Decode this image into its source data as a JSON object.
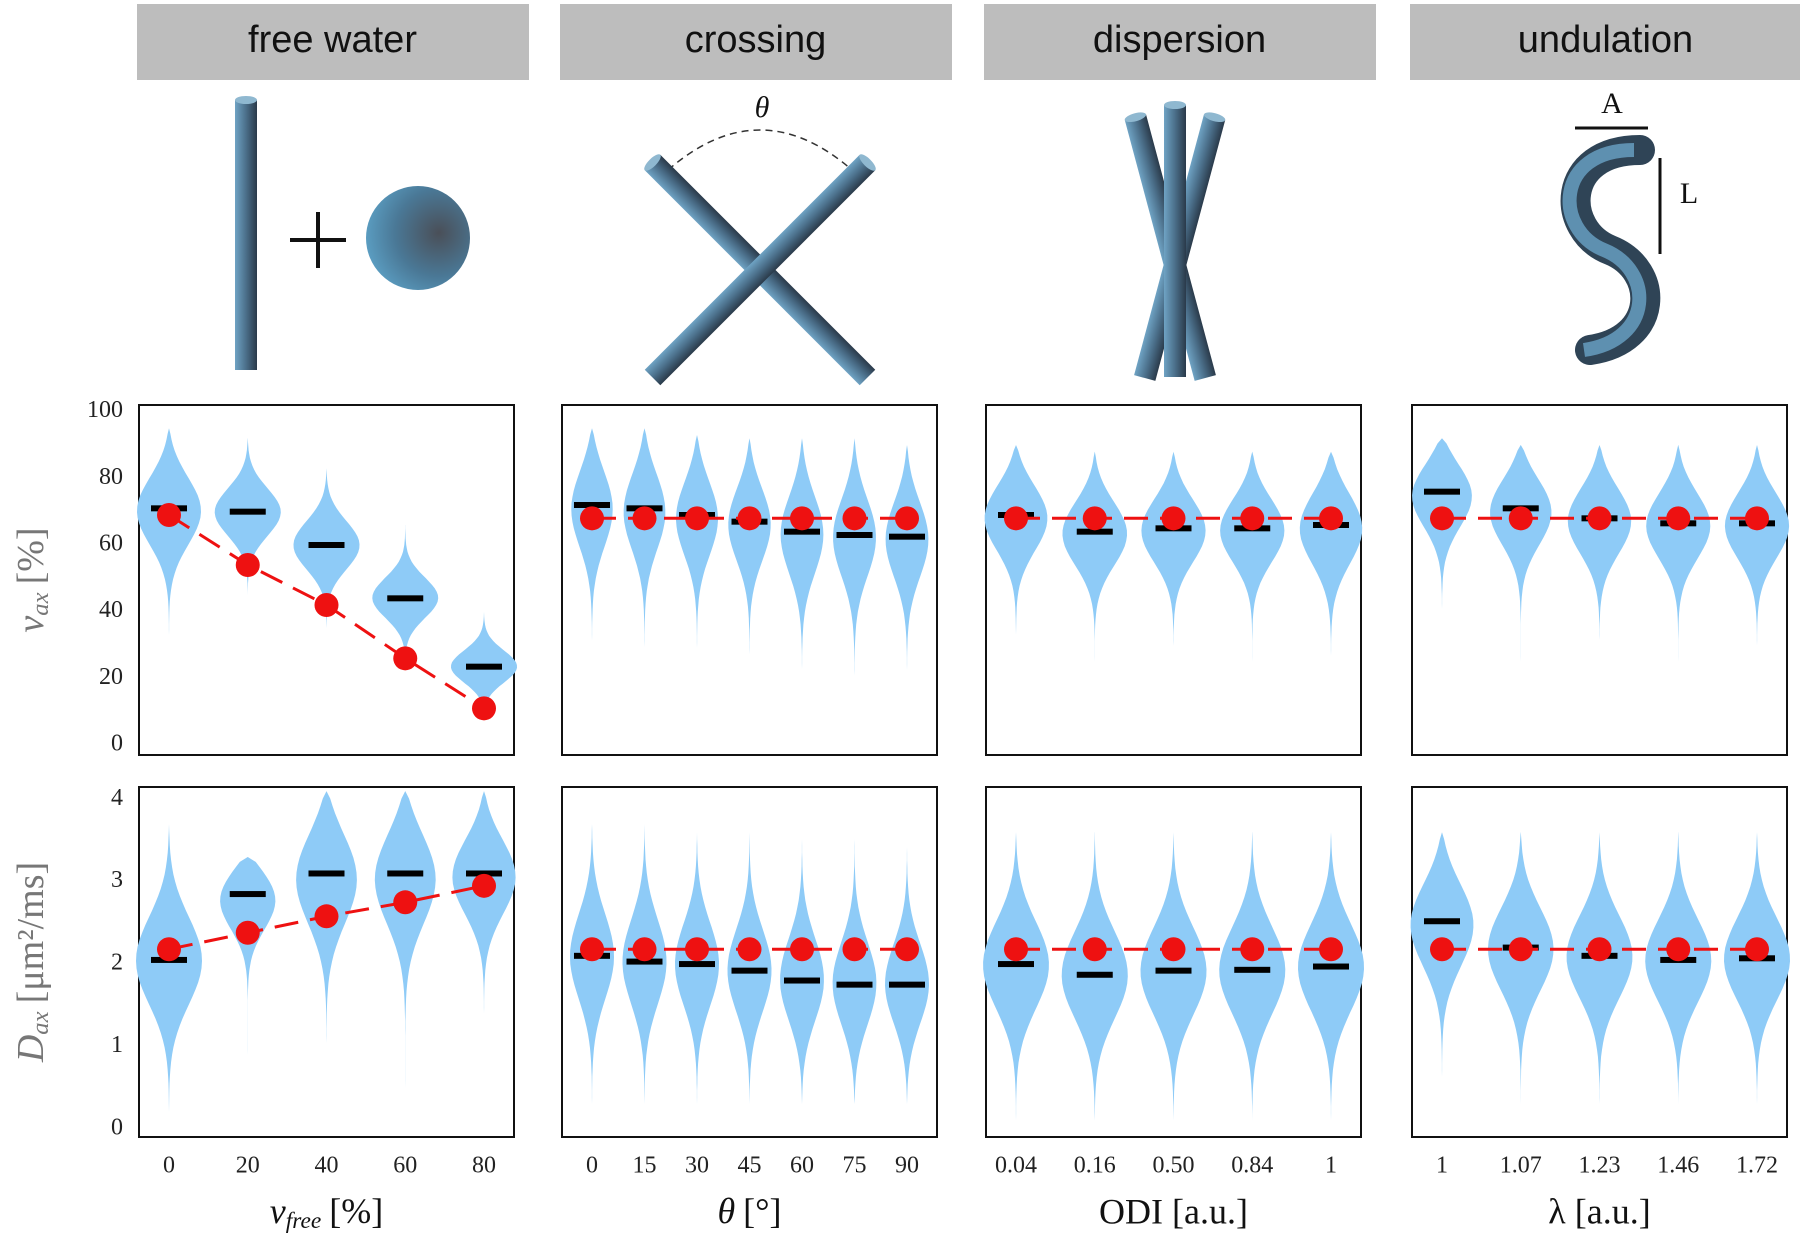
{
  "diagram_labels": {
    "theta": "θ",
    "amplitude": "A",
    "length": "L"
  },
  "chart_data": [
    {
      "type": "violin",
      "title": "free water",
      "ylabel": {
        "symbol": "v",
        "sub": "ax",
        "unit": "[%]"
      },
      "categories": [
        null,
        null,
        null,
        null,
        null
      ],
      "ylim": [
        -3,
        102
      ],
      "yticks": [
        0,
        20,
        40,
        60,
        80,
        100
      ],
      "medians": [
        71,
        70,
        60,
        44,
        23.5
      ],
      "truth": [
        69,
        54,
        42,
        26,
        11
      ],
      "violins": [
        [
          28,
          95
        ],
        [
          45,
          92
        ],
        [
          35,
          83
        ],
        [
          26,
          66
        ],
        [
          8,
          40
        ]
      ],
      "color": "#8ecbf7",
      "truth_color": "#ee1111"
    },
    {
      "type": "violin",
      "title": "crossing",
      "categories": [
        null,
        null,
        null,
        null,
        null,
        null,
        null
      ],
      "ylim": [
        -3,
        102
      ],
      "medians": [
        72,
        71,
        69,
        67,
        64,
        63,
        62.5
      ],
      "truth": [
        68,
        68,
        68,
        68,
        68,
        68,
        68
      ],
      "violins": [
        [
          20,
          95
        ],
        [
          20,
          95
        ],
        [
          20,
          93
        ],
        [
          20,
          92
        ],
        [
          15,
          92
        ],
        [
          15,
          92
        ],
        [
          15,
          90
        ]
      ],
      "color": "#8ecbf7",
      "truth_color": "#ee1111"
    },
    {
      "type": "violin",
      "title": "dispersion",
      "categories": [
        null,
        null,
        null,
        null,
        null
      ],
      "ylim": [
        -3,
        102
      ],
      "medians": [
        69,
        64,
        65,
        65,
        66
      ],
      "truth": [
        68,
        68,
        68,
        68,
        68
      ],
      "violins": [
        [
          25,
          90
        ],
        [
          25,
          88
        ],
        [
          25,
          88
        ],
        [
          25,
          88
        ],
        [
          18,
          88
        ]
      ],
      "color": "#8ecbf7",
      "truth_color": "#ee1111"
    },
    {
      "type": "violin",
      "title": "undulation",
      "categories": [
        null,
        null,
        null,
        null,
        null
      ],
      "ylim": [
        -3,
        102
      ],
      "medians": [
        76,
        71,
        68,
        66.5,
        66.5
      ],
      "truth": [
        68,
        68,
        68,
        68,
        68
      ],
      "violins": [
        [
          30,
          92
        ],
        [
          25,
          90
        ],
        [
          25,
          90
        ],
        [
          25,
          90
        ],
        [
          25,
          90
        ]
      ],
      "color": "#8ecbf7",
      "truth_color": "#ee1111"
    },
    {
      "type": "violin",
      "xlabel": {
        "symbol": "v",
        "sub": "free",
        "unit": "[%]"
      },
      "ylabel": {
        "symbol": "D",
        "sub": "ax",
        "unit": "[μm²/ms]"
      },
      "categories": [
        0,
        20,
        40,
        60,
        80
      ],
      "ylim": [
        -0.1,
        4.15
      ],
      "yticks": [
        0,
        1,
        2,
        3,
        4
      ],
      "medians": [
        2.05,
        2.85,
        3.1,
        3.1,
        3.1
      ],
      "truth": [
        2.18,
        2.38,
        2.58,
        2.75,
        2.95
      ],
      "violins": [
        [
          0.2,
          3.7
        ],
        [
          0.9,
          3.3
        ],
        [
          0.5,
          4.1
        ],
        [
          0.5,
          4.1
        ],
        [
          1.1,
          4.1
        ]
      ],
      "color": "#8ecbf7",
      "truth_color": "#ee1111"
    },
    {
      "type": "violin",
      "xlabel": {
        "symbol": "θ",
        "unit": "[°]"
      },
      "categories": [
        0,
        15,
        30,
        45,
        60,
        75,
        90
      ],
      "ylim": [
        -0.1,
        4.15
      ],
      "medians": [
        2.1,
        2.03,
        2.0,
        1.92,
        1.8,
        1.75,
        1.75
      ],
      "truth": [
        2.18,
        2.18,
        2.18,
        2.18,
        2.18,
        2.18,
        2.18
      ],
      "violins": [
        [
          0.3,
          3.7
        ],
        [
          0.3,
          3.7
        ],
        [
          0.3,
          3.6
        ],
        [
          0.3,
          3.6
        ],
        [
          0.3,
          3.6
        ],
        [
          0.3,
          3.6
        ],
        [
          0.3,
          3.5
        ]
      ],
      "color": "#8ecbf7",
      "truth_color": "#ee1111"
    },
    {
      "type": "violin",
      "xlabel": "ODI [a.u.]",
      "categories": [
        "0.04",
        "0.16",
        "0.50",
        "0.84",
        "1"
      ],
      "ylim": [
        -0.1,
        4.15
      ],
      "medians": [
        2.0,
        1.87,
        1.92,
        1.93,
        1.97
      ],
      "truth": [
        2.18,
        2.18,
        2.18,
        2.18,
        2.18
      ],
      "violins": [
        [
          0.1,
          3.6
        ],
        [
          0.1,
          3.6
        ],
        [
          0.1,
          3.6
        ],
        [
          0.1,
          3.6
        ],
        [
          0.1,
          3.6
        ]
      ],
      "color": "#8ecbf7",
      "truth_color": "#ee1111"
    },
    {
      "type": "violin",
      "xlabel": "λ [a.u.]",
      "categories": [
        "1",
        "1.07",
        "1.23",
        "1.46",
        "1.72"
      ],
      "ylim": [
        -0.1,
        4.15
      ],
      "medians": [
        2.52,
        2.2,
        2.1,
        2.05,
        2.07
      ],
      "truth": [
        2.18,
        2.18,
        2.18,
        2.18,
        2.18
      ],
      "violins": [
        [
          0.3,
          3.6
        ],
        [
          0.3,
          3.6
        ],
        [
          0.3,
          3.6
        ],
        [
          0.3,
          3.6
        ],
        [
          0.3,
          3.6
        ]
      ],
      "color": "#8ecbf7",
      "truth_color": "#ee1111"
    }
  ]
}
